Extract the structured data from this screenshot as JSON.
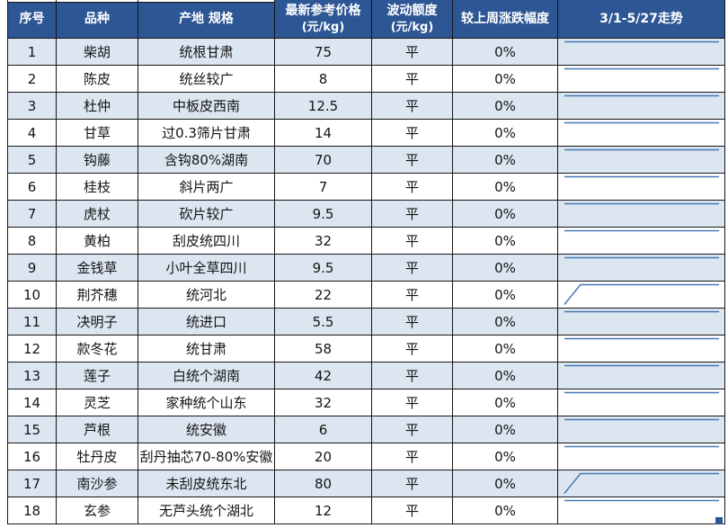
{
  "table": {
    "headers": [
      {
        "line1": "序号",
        "line2": ""
      },
      {
        "line1": "品种",
        "line2": ""
      },
      {
        "line1": "产地 规格",
        "line2": ""
      },
      {
        "line1": "最新参考价格",
        "line2": "(元/kg)"
      },
      {
        "line1": "波动额度",
        "line2": "(元/kg)"
      },
      {
        "line1": "较上周涨跌幅度",
        "line2": ""
      },
      {
        "line1": "3/1-5/27走势",
        "line2": ""
      }
    ],
    "rows": [
      {
        "no": "1",
        "name": "柴胡",
        "spec": "统根甘肃",
        "price": "75",
        "fluct": "平",
        "change": "0%",
        "trend": "flat"
      },
      {
        "no": "2",
        "name": "陈皮",
        "spec": "统丝较广",
        "price": "8",
        "fluct": "平",
        "change": "0%",
        "trend": "flat"
      },
      {
        "no": "3",
        "name": "杜仲",
        "spec": "中板皮西南",
        "price": "12.5",
        "fluct": "平",
        "change": "0%",
        "trend": "flat"
      },
      {
        "no": "4",
        "name": "甘草",
        "spec": "过0.3筛片甘肃",
        "price": "14",
        "fluct": "平",
        "change": "0%",
        "trend": "flat"
      },
      {
        "no": "5",
        "name": "钩藤",
        "spec": "含钩80%湖南",
        "price": "70",
        "fluct": "平",
        "change": "0%",
        "trend": "flat"
      },
      {
        "no": "6",
        "name": "桂枝",
        "spec": "斜片两广",
        "price": "7",
        "fluct": "平",
        "change": "0%",
        "trend": "flat"
      },
      {
        "no": "7",
        "name": "虎杖",
        "spec": "砍片较广",
        "price": "9.5",
        "fluct": "平",
        "change": "0%",
        "trend": "flat"
      },
      {
        "no": "8",
        "name": "黄柏",
        "spec": "刮皮统四川",
        "price": "32",
        "fluct": "平",
        "change": "0%",
        "trend": "flat"
      },
      {
        "no": "9",
        "name": "金钱草",
        "spec": "小叶全草四川",
        "price": "9.5",
        "fluct": "平",
        "change": "0%",
        "trend": "flat"
      },
      {
        "no": "10",
        "name": "荆芥穗",
        "spec": "统河北",
        "price": "22",
        "fluct": "平",
        "change": "0%",
        "trend": "rise"
      },
      {
        "no": "11",
        "name": "决明子",
        "spec": "统进口",
        "price": "5.5",
        "fluct": "平",
        "change": "0%",
        "trend": "flat"
      },
      {
        "no": "12",
        "name": "款冬花",
        "spec": "统甘肃",
        "price": "58",
        "fluct": "平",
        "change": "0%",
        "trend": "flat"
      },
      {
        "no": "13",
        "name": "莲子",
        "spec": "白统个湖南",
        "price": "42",
        "fluct": "平",
        "change": "0%",
        "trend": "flat"
      },
      {
        "no": "14",
        "name": "灵芝",
        "spec": "家种统个山东",
        "price": "32",
        "fluct": "平",
        "change": "0%",
        "trend": "flat"
      },
      {
        "no": "15",
        "name": "芦根",
        "spec": "统安徽",
        "price": "6",
        "fluct": "平",
        "change": "0%",
        "trend": "flat"
      },
      {
        "no": "16",
        "name": "牡丹皮",
        "spec": "刮丹抽芯70-80%安徽",
        "price": "20",
        "fluct": "平",
        "change": "0%",
        "trend": "flat"
      },
      {
        "no": "17",
        "name": "南沙参",
        "spec": "未刮皮统东北",
        "price": "80",
        "fluct": "平",
        "change": "0%",
        "trend": "rise"
      },
      {
        "no": "18",
        "name": "玄参",
        "spec": "无芦头统个湖北",
        "price": "12",
        "fluct": "平",
        "change": "0%",
        "trend": "flat"
      }
    ]
  },
  "sparkline_shapes": {
    "flat": "7,3.5 180,3.5",
    "rise": "7,25.5 25,3.5 180,3.5"
  },
  "colors": {
    "header_bg": "#2d5694",
    "row_alt_bg": "#dce6f1",
    "row_plain_bg": "#ffffff",
    "sparkline": "#4678b4",
    "border": "#161616",
    "header_text": "#ffffff",
    "body_text": "#141414"
  }
}
